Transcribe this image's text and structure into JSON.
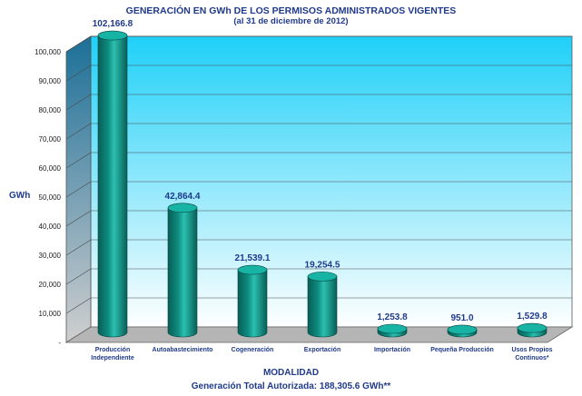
{
  "page": {
    "title_line1": "GENERACIÓN EN GWh DE LOS PERMISOS ADMINISTRADOS VIGENTES",
    "title_line2": "(al 31 de diciembre de 2012)",
    "footer": "Generación Total Autorizada: 188,305.6 GWh**"
  },
  "colors": {
    "bar": "#0f8c80",
    "bar_dark": "#085e56",
    "bar_top": "#17b3a4",
    "text": "#1f3a8a",
    "bg_top": "#1fd0f8",
    "bg_bottom": "#ffffff"
  },
  "chart_data": {
    "type": "bar",
    "title": "GENERACIÓN EN GWh DE LOS PERMISOS ADMINISTRADOS VIGENTES",
    "subtitle": "(al 31 de diciembre de 2012)",
    "xlabel": "MODALIDAD",
    "ylabel": "GWh",
    "ylim": [
      0,
      100000
    ],
    "yticks": [
      "-",
      "10,000",
      "20,000",
      "30,000",
      "40,000",
      "50,000",
      "60,000",
      "70,000",
      "80,000",
      "90,000",
      "100,000"
    ],
    "categories": [
      [
        "Producción",
        "Independiente"
      ],
      [
        "Autoabastecimiento"
      ],
      [
        "Cogeneración"
      ],
      [
        "Exportación"
      ],
      [
        "Importación"
      ],
      [
        "Pequeña Producción"
      ],
      [
        "Usos Propios",
        "Continuos*"
      ]
    ],
    "values": [
      102166.8,
      42864.4,
      21539.1,
      19254.5,
      1253.8,
      951.0,
      1529.8
    ],
    "data_labels": [
      "102,166.8",
      "42,864.4",
      "21,539.1",
      "19,254.5",
      "1,253.8",
      "951.0",
      "1,529.8"
    ]
  }
}
